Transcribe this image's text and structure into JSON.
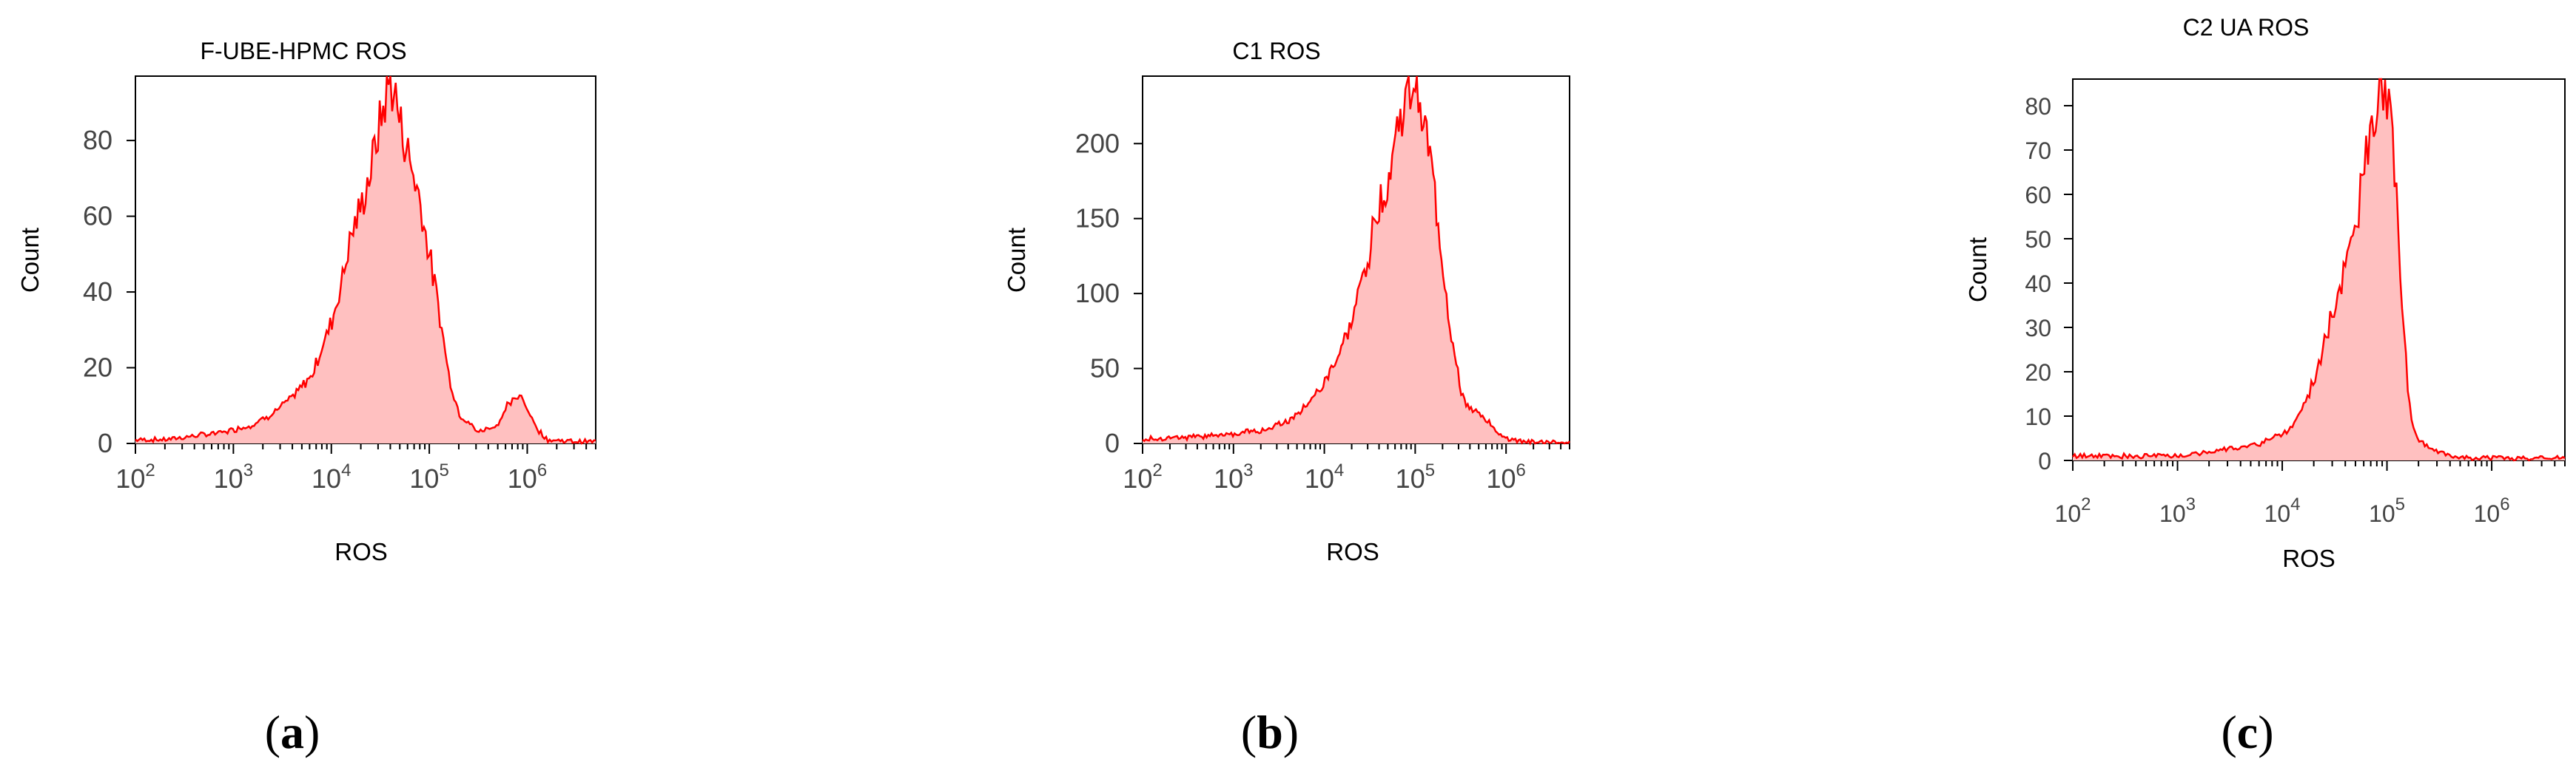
{
  "chart_data": [
    {
      "type": "area",
      "panel_label": "a",
      "title": "F-UBE-HPMC ROS",
      "xlabel": "ROS",
      "ylabel": "Count",
      "x_scale": "log",
      "xlim": [
        100,
        5000000
      ],
      "ylim": [
        0,
        97
      ],
      "x_ticks": [
        {
          "base": "10",
          "exp": "2",
          "value": 100
        },
        {
          "base": "10",
          "exp": "3",
          "value": 1000
        },
        {
          "base": "10",
          "exp": "4",
          "value": 10000
        },
        {
          "base": "10",
          "exp": "5",
          "value": 100000
        },
        {
          "base": "10",
          "exp": "6",
          "value": 1000000
        }
      ],
      "y_ticks": [
        "0",
        "20",
        "40",
        "60",
        "80"
      ],
      "y_tick_values": [
        0,
        20,
        40,
        60,
        80
      ],
      "series": [
        {
          "name": "ROS",
          "color": "#ff0000",
          "fill": "#ffc0c0",
          "points": [
            [
              2.0,
              1
            ],
            [
              2.3,
              1
            ],
            [
              2.6,
              2
            ],
            [
              2.9,
              3
            ],
            [
              3.2,
              5
            ],
            [
              3.4,
              8
            ],
            [
              3.6,
              12
            ],
            [
              3.8,
              18
            ],
            [
              3.9,
              25
            ],
            [
              4.0,
              32
            ],
            [
              4.1,
              42
            ],
            [
              4.2,
              55
            ],
            [
              4.3,
              62
            ],
            [
              4.4,
              72
            ],
            [
              4.5,
              85
            ],
            [
              4.6,
              96
            ],
            [
              4.65,
              92
            ],
            [
              4.7,
              85
            ],
            [
              4.8,
              75
            ],
            [
              4.9,
              65
            ],
            [
              5.0,
              50
            ],
            [
              5.1,
              35
            ],
            [
              5.2,
              18
            ],
            [
              5.3,
              8
            ],
            [
              5.5,
              3
            ],
            [
              5.7,
              5
            ],
            [
              5.8,
              10
            ],
            [
              5.9,
              12
            ],
            [
              5.95,
              13
            ],
            [
              6.0,
              9
            ],
            [
              6.1,
              4
            ],
            [
              6.2,
              1
            ],
            [
              6.5,
              0.5
            ],
            [
              6.7,
              0.5
            ]
          ]
        }
      ]
    },
    {
      "type": "area",
      "panel_label": "b",
      "title": "C1 ROS",
      "xlabel": "ROS",
      "ylabel": "Count",
      "x_scale": "log",
      "xlim": [
        100,
        5000000
      ],
      "ylim": [
        0,
        245
      ],
      "x_ticks": [
        {
          "base": "10",
          "exp": "2",
          "value": 100
        },
        {
          "base": "10",
          "exp": "3",
          "value": 1000
        },
        {
          "base": "10",
          "exp": "4",
          "value": 10000
        },
        {
          "base": "10",
          "exp": "5",
          "value": 100000
        },
        {
          "base": "10",
          "exp": "6",
          "value": 1000000
        }
      ],
      "y_ticks": [
        "0",
        "50",
        "100",
        "150",
        "200"
      ],
      "y_tick_values": [
        0,
        50,
        100,
        150,
        200
      ],
      "series": [
        {
          "name": "ROS",
          "color": "#ff0000",
          "fill": "#ffc0c0",
          "points": [
            [
              2.0,
              3
            ],
            [
              2.5,
              4
            ],
            [
              3.0,
              6
            ],
            [
              3.3,
              9
            ],
            [
              3.6,
              15
            ],
            [
              3.8,
              25
            ],
            [
              4.0,
              40
            ],
            [
              4.1,
              52
            ],
            [
              4.2,
              65
            ],
            [
              4.3,
              80
            ],
            [
              4.4,
              105
            ],
            [
              4.5,
              130
            ],
            [
              4.6,
              160
            ],
            [
              4.7,
              175
            ],
            [
              4.8,
              210
            ],
            [
              4.9,
              228
            ],
            [
              5.0,
              242
            ],
            [
              5.05,
              235
            ],
            [
              5.1,
              215
            ],
            [
              5.2,
              175
            ],
            [
              5.3,
              120
            ],
            [
              5.4,
              70
            ],
            [
              5.5,
              35
            ],
            [
              5.6,
              22
            ],
            [
              5.7,
              20
            ],
            [
              5.8,
              15
            ],
            [
              5.9,
              8
            ],
            [
              6.0,
              3
            ],
            [
              6.2,
              1
            ],
            [
              6.7,
              1
            ]
          ]
        }
      ]
    },
    {
      "type": "area",
      "panel_label": "c",
      "title": "C2 UA ROS",
      "xlabel": "ROS",
      "ylabel": "Count",
      "x_scale": "log",
      "xlim": [
        100,
        5000000
      ],
      "ylim": [
        0,
        86
      ],
      "x_ticks": [
        {
          "base": "10",
          "exp": "2",
          "value": 100
        },
        {
          "base": "10",
          "exp": "3",
          "value": 1000
        },
        {
          "base": "10",
          "exp": "4",
          "value": 10000
        },
        {
          "base": "10",
          "exp": "5",
          "value": 100000
        },
        {
          "base": "10",
          "exp": "6",
          "value": 1000000
        }
      ],
      "y_ticks": [
        "0",
        "10",
        "20",
        "30",
        "40",
        "50",
        "60",
        "70",
        "80"
      ],
      "y_tick_values": [
        0,
        10,
        20,
        30,
        40,
        50,
        60,
        70,
        80
      ],
      "series": [
        {
          "name": "ROS",
          "color": "#ff0000",
          "fill": "#ffc0c0",
          "points": [
            [
              2.0,
              1
            ],
            [
              2.5,
              1
            ],
            [
              3.0,
              1
            ],
            [
              3.3,
              2
            ],
            [
              3.6,
              3
            ],
            [
              3.8,
              4
            ],
            [
              4.0,
              6
            ],
            [
              4.1,
              8
            ],
            [
              4.2,
              12
            ],
            [
              4.3,
              18
            ],
            [
              4.4,
              26
            ],
            [
              4.5,
              35
            ],
            [
              4.6,
              44
            ],
            [
              4.7,
              52
            ],
            [
              4.75,
              60
            ],
            [
              4.8,
              68
            ],
            [
              4.85,
              72
            ],
            [
              4.9,
              82
            ],
            [
              4.95,
              86
            ],
            [
              5.0,
              82
            ],
            [
              5.05,
              72
            ],
            [
              5.1,
              55
            ],
            [
              5.15,
              35
            ],
            [
              5.2,
              15
            ],
            [
              5.25,
              7
            ],
            [
              5.3,
              5
            ],
            [
              5.4,
              3
            ],
            [
              5.5,
              2
            ],
            [
              5.6,
              1
            ],
            [
              5.8,
              0.5
            ],
            [
              6.7,
              0.5
            ]
          ]
        }
      ]
    }
  ]
}
